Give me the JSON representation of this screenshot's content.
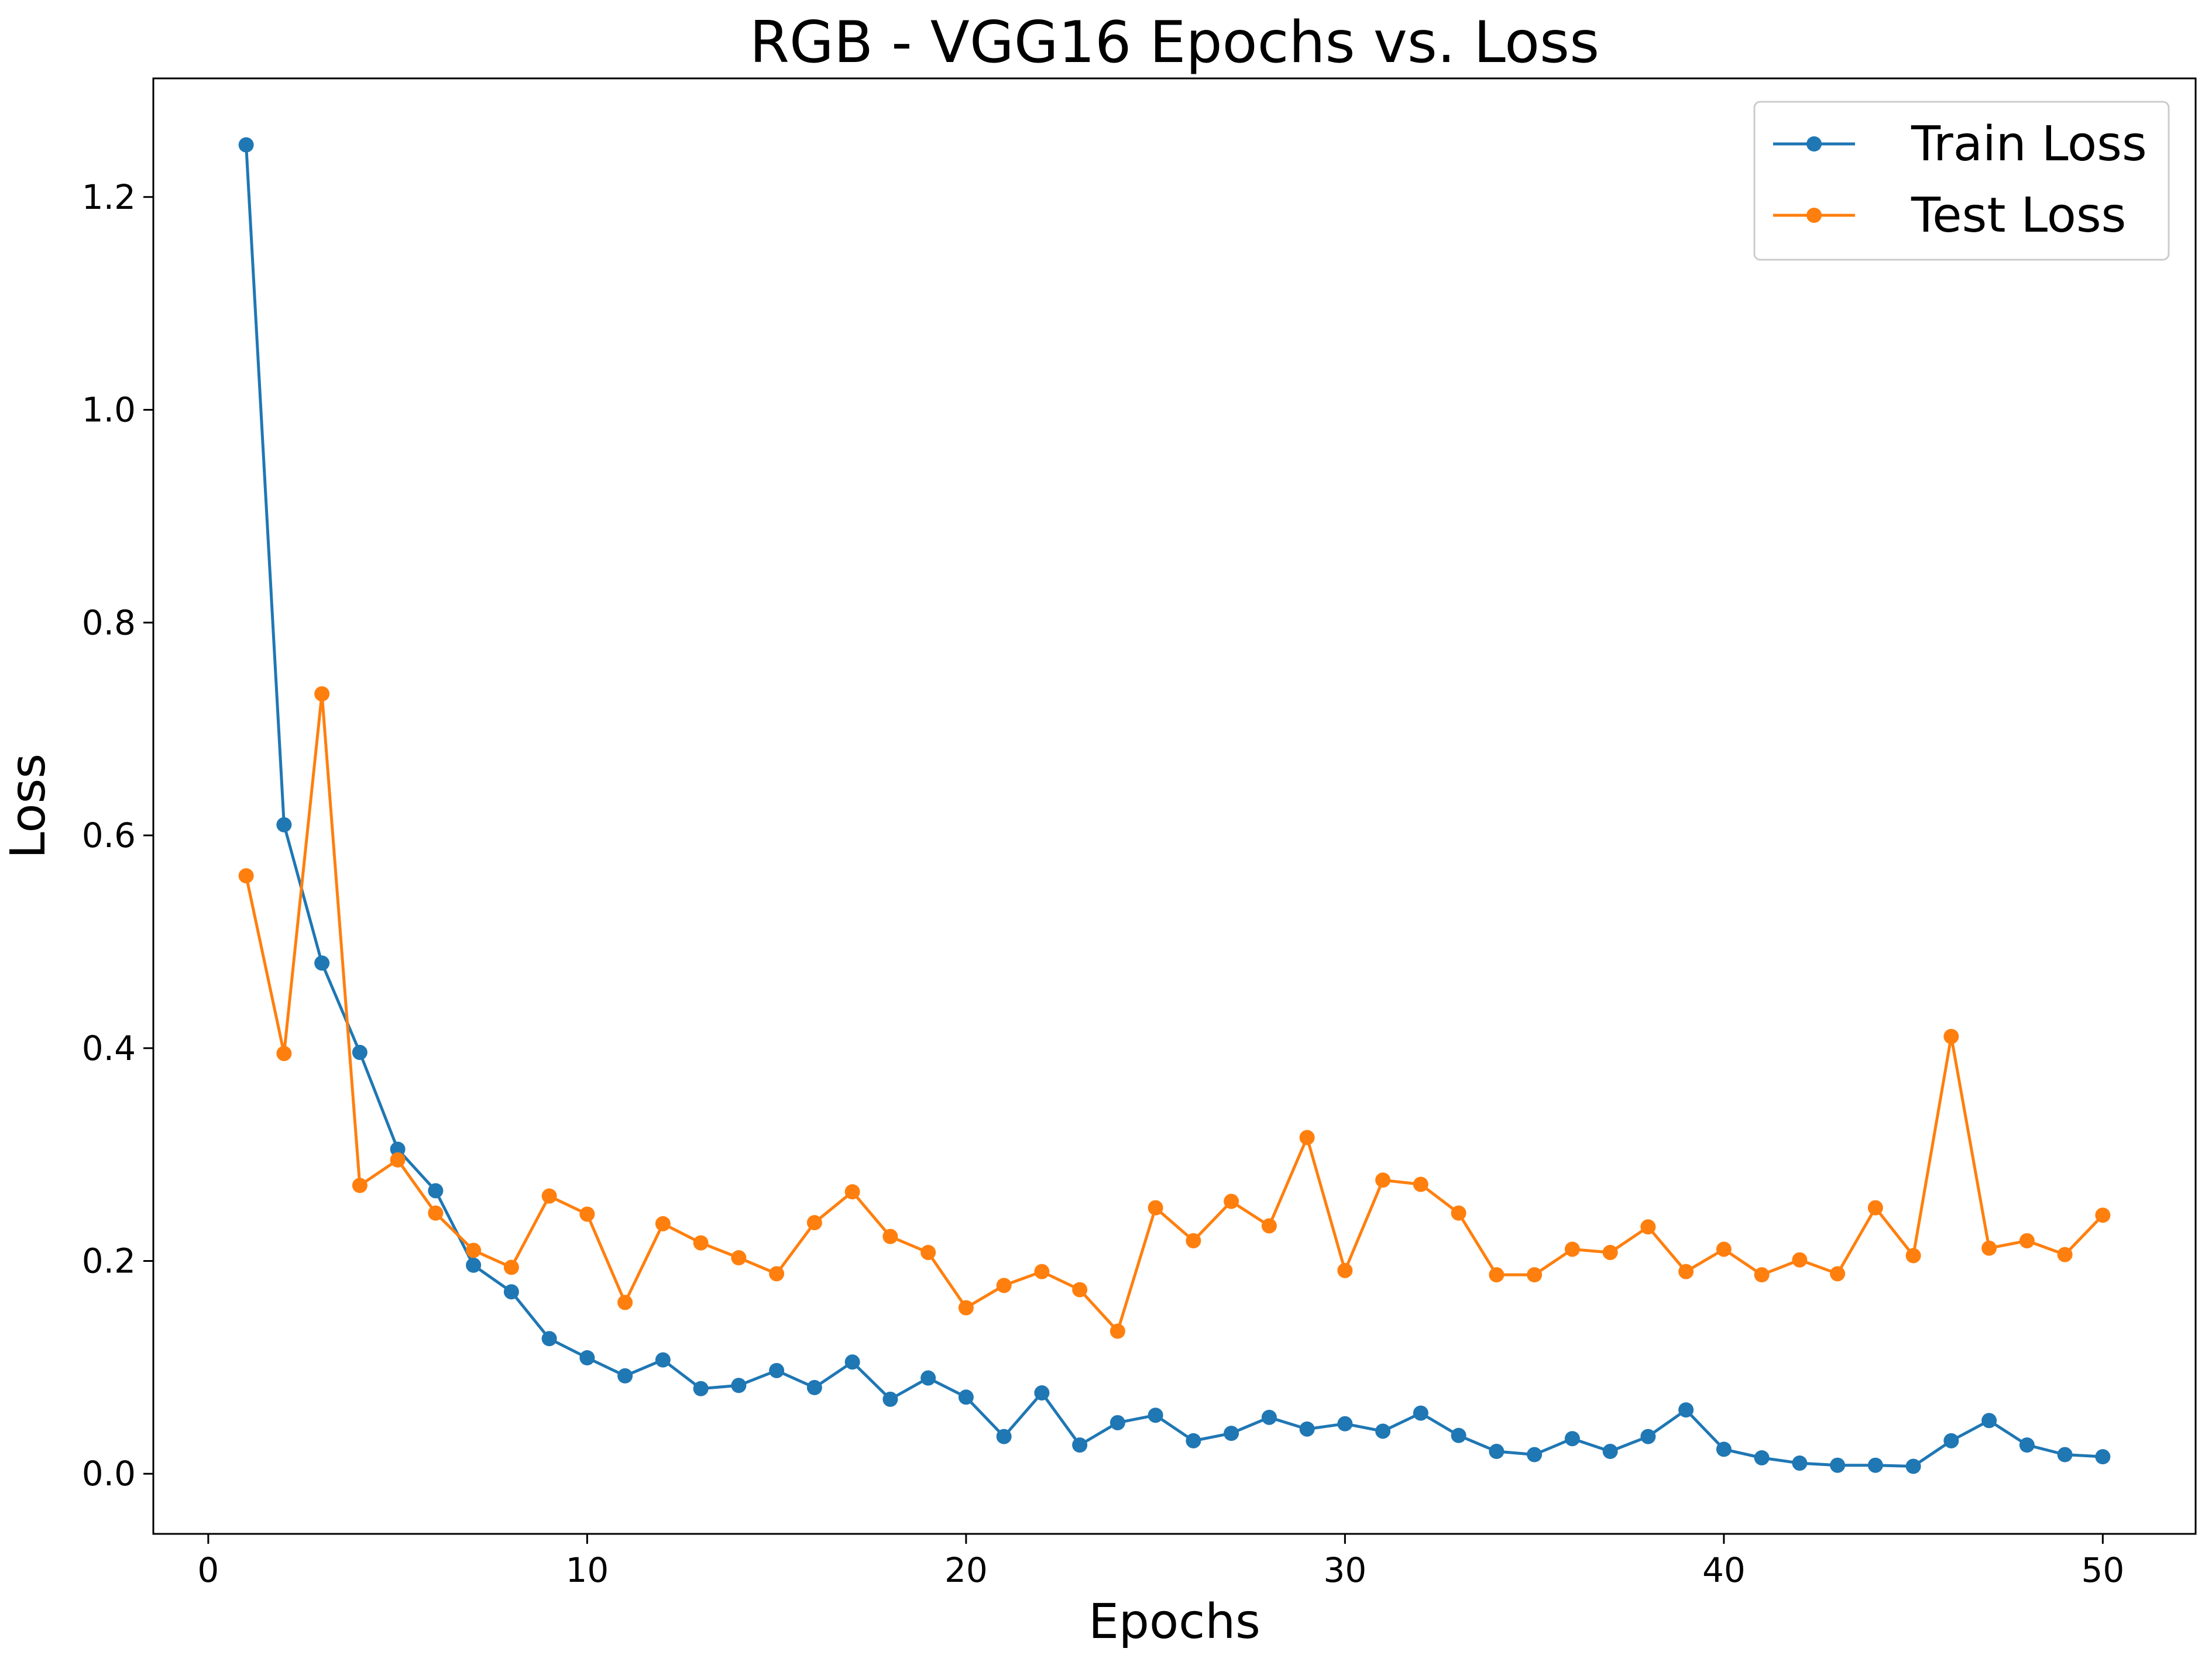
{
  "chart_data": {
    "type": "line",
    "title": "RGB - VGG16 Epochs vs. Loss",
    "xlabel": "Epochs",
    "ylabel": "Loss",
    "xlim": [
      -1.45,
      52.45
    ],
    "ylim": [
      -0.0565,
      1.3115
    ],
    "xticks": [
      0,
      10,
      20,
      30,
      40,
      50
    ],
    "xtick_labels": [
      "0",
      "10",
      "20",
      "30",
      "40",
      "50"
    ],
    "yticks": [
      0.0,
      0.2,
      0.4,
      0.6,
      0.8,
      1.0,
      1.2
    ],
    "ytick_labels": [
      "0.0",
      "0.2",
      "0.4",
      "0.6",
      "0.8",
      "1.0",
      "1.2"
    ],
    "grid": false,
    "legend_position": "upper right",
    "x": [
      1,
      2,
      3,
      4,
      5,
      6,
      7,
      8,
      9,
      10,
      11,
      12,
      13,
      14,
      15,
      16,
      17,
      18,
      19,
      20,
      21,
      22,
      23,
      24,
      25,
      26,
      27,
      28,
      29,
      30,
      31,
      32,
      33,
      34,
      35,
      36,
      37,
      38,
      39,
      40,
      41,
      42,
      43,
      44,
      45,
      46,
      47,
      48,
      49,
      50
    ],
    "series": [
      {
        "name": "Train Loss",
        "color": "#1f77b4",
        "values": [
          1.249,
          0.61,
          0.48,
          0.396,
          0.305,
          0.266,
          0.196,
          0.171,
          0.127,
          0.109,
          0.092,
          0.107,
          0.08,
          0.083,
          0.097,
          0.081,
          0.105,
          0.07,
          0.09,
          0.072,
          0.035,
          0.076,
          0.027,
          0.048,
          0.055,
          0.031,
          0.038,
          0.053,
          0.042,
          0.047,
          0.04,
          0.057,
          0.036,
          0.021,
          0.018,
          0.033,
          0.021,
          0.035,
          0.06,
          0.023,
          0.015,
          0.01,
          0.008,
          0.008,
          0.007,
          0.031,
          0.05,
          0.027,
          0.018,
          0.016
        ]
      },
      {
        "name": "Test Loss",
        "color": "#ff7f0e",
        "values": [
          0.562,
          0.395,
          0.733,
          0.271,
          0.295,
          0.245,
          0.21,
          0.194,
          0.261,
          0.244,
          0.161,
          0.235,
          0.217,
          0.203,
          0.188,
          0.236,
          0.265,
          0.223,
          0.208,
          0.156,
          0.177,
          0.19,
          0.173,
          0.134,
          0.25,
          0.219,
          0.256,
          0.233,
          0.316,
          0.191,
          0.276,
          0.272,
          0.245,
          0.187,
          0.187,
          0.211,
          0.208,
          0.232,
          0.19,
          0.211,
          0.187,
          0.201,
          0.188,
          0.25,
          0.205,
          0.411,
          0.212,
          0.219,
          0.206,
          0.243
        ]
      }
    ]
  }
}
